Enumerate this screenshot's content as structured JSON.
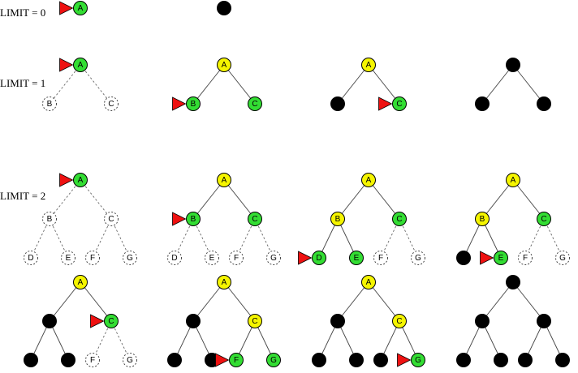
{
  "limit_labels": [
    "LIMIT = 0",
    "LIMIT = 1",
    "LIMIT = 2"
  ],
  "colors": {
    "frontier": "#33dd33",
    "expanded": "#f5f500",
    "done": "#000000",
    "unseen_fill": "#ffffff",
    "pointer": "#ee1111",
    "line": "#555555"
  },
  "rows": [
    {
      "limit_index": 0,
      "panels": [
        {
          "depth": 0,
          "nodes": {
            "A": "frontier"
          },
          "pointer": "A"
        },
        {
          "depth": 0,
          "nodes": {
            "A": "done"
          }
        }
      ]
    },
    {
      "limit_index": 1,
      "panels": [
        {
          "depth": 1,
          "nodes": {
            "A": "frontier",
            "B": "unseen",
            "C": "unseen"
          },
          "pointer": "A"
        },
        {
          "depth": 1,
          "nodes": {
            "A": "expanded",
            "B": "frontier",
            "C": "frontier"
          },
          "pointer": "B"
        },
        {
          "depth": 1,
          "nodes": {
            "A": "expanded",
            "B": "done",
            "C": "frontier"
          },
          "pointer": "C"
        },
        {
          "depth": 1,
          "nodes": {
            "A": "done",
            "B": "done",
            "C": "done"
          }
        }
      ]
    },
    {
      "limit_index": 2,
      "panels": [
        {
          "depth": 2,
          "nodes": {
            "A": "frontier",
            "B": "unseen",
            "C": "unseen",
            "D": "unseen",
            "E": "unseen",
            "F": "unseen",
            "G": "unseen"
          },
          "pointer": "A"
        },
        {
          "depth": 2,
          "nodes": {
            "A": "expanded",
            "B": "frontier",
            "C": "frontier",
            "D": "unseen",
            "E": "unseen",
            "F": "unseen",
            "G": "unseen"
          },
          "pointer": "B"
        },
        {
          "depth": 2,
          "nodes": {
            "A": "expanded",
            "B": "expanded",
            "C": "frontier",
            "D": "frontier",
            "E": "frontier",
            "F": "unseen",
            "G": "unseen"
          },
          "pointer": "D"
        },
        {
          "depth": 2,
          "nodes": {
            "A": "expanded",
            "B": "expanded",
            "C": "frontier",
            "D": "done",
            "E": "frontier",
            "F": "unseen",
            "G": "unseen"
          },
          "pointer": "E"
        }
      ]
    },
    {
      "limit_index": null,
      "panels": [
        {
          "depth": 2,
          "nodes": {
            "A": "expanded",
            "B": "done",
            "C": "frontier",
            "D": "done",
            "E": "done",
            "F": "unseen",
            "G": "unseen"
          },
          "pointer": "C"
        },
        {
          "depth": 2,
          "nodes": {
            "A": "expanded",
            "B": "done",
            "C": "expanded",
            "D": "done",
            "E": "done",
            "F": "frontier",
            "G": "frontier"
          },
          "pointer": "F"
        },
        {
          "depth": 2,
          "nodes": {
            "A": "expanded",
            "B": "done",
            "C": "expanded",
            "D": "done",
            "E": "done",
            "F": "done",
            "G": "frontier"
          },
          "pointer": "G"
        },
        {
          "depth": 2,
          "nodes": {
            "A": "done",
            "B": "done",
            "C": "done",
            "D": "done",
            "E": "done",
            "F": "done",
            "G": "done"
          }
        }
      ]
    }
  ]
}
